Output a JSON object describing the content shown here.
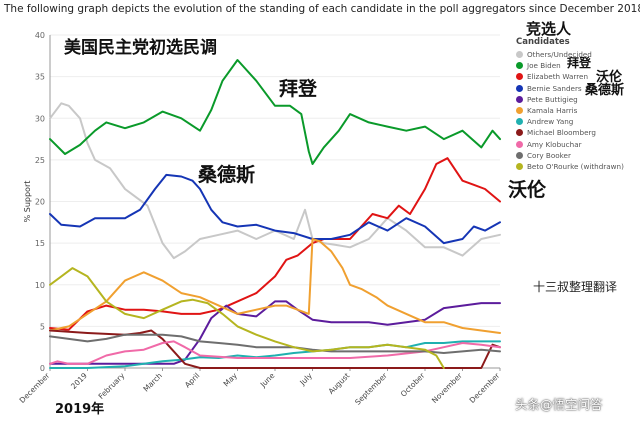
{
  "caption": "The following graph depicts the evolution of the standing of each candidate in the poll aggregators since December 2018.",
  "annotations": {
    "overlay_title": "美国民主党初选民调",
    "biden": "拜登",
    "sanders": "桑德斯",
    "warren": "沃伦",
    "legend_header_cn": "竞选人",
    "legend_biden_cn": "拜登",
    "legend_warren_cn": "沃伦",
    "legend_sanders_cn": "桑德斯",
    "credit": "十三叔整理翻译",
    "year": "2019年",
    "watermark": "头条@悟空问答"
  },
  "chart_data": {
    "type": "line",
    "ylabel": "% Support",
    "ylim": [
      0,
      40
    ],
    "yticks": [
      0,
      5,
      10,
      15,
      20,
      25,
      30,
      35,
      40
    ],
    "xlim": [
      0,
      12
    ],
    "xticks": [
      {
        "label": "December",
        "x": 0
      },
      {
        "label": "2019",
        "x": 1
      },
      {
        "label": "February",
        "x": 2
      },
      {
        "label": "March",
        "x": 3
      },
      {
        "label": "April",
        "x": 4
      },
      {
        "label": "May",
        "x": 5
      },
      {
        "label": "June",
        "x": 6
      },
      {
        "label": "July",
        "x": 7
      },
      {
        "label": "August",
        "x": 8
      },
      {
        "label": "September",
        "x": 9
      },
      {
        "label": "October",
        "x": 10
      },
      {
        "label": "November",
        "x": 11
      },
      {
        "label": "December",
        "x": 12
      }
    ],
    "legend_title": "Candidates",
    "series": [
      {
        "name": "Others/Undecided",
        "color": "#c8c8c8",
        "x": [
          0,
          0.3,
          0.5,
          0.8,
          1.0,
          1.2,
          1.6,
          2.0,
          2.6,
          3.0,
          3.3,
          3.6,
          4.0,
          4.5,
          5.0,
          5.5,
          6.0,
          6.5,
          6.8,
          7.0,
          7.3,
          7.6,
          8.0,
          8.5,
          9.0,
          9.5,
          10.0,
          10.5,
          11.0,
          11.5,
          12.0
        ],
        "y": [
          30,
          31.8,
          31.5,
          30,
          27,
          25,
          24,
          21.5,
          19.5,
          15,
          13.2,
          14,
          15.5,
          16,
          16.5,
          15.5,
          16.5,
          15.5,
          19,
          15.5,
          15,
          14.8,
          14.5,
          15.5,
          18,
          16.5,
          14.5,
          14.5,
          13.5,
          15.5,
          16
        ]
      },
      {
        "name": "Joe Biden",
        "color": "#0a9a2a",
        "x": [
          0,
          0.4,
          0.8,
          1.2,
          1.5,
          2.0,
          2.5,
          3.0,
          3.5,
          4.0,
          4.3,
          4.6,
          5.0,
          5.5,
          6.0,
          6.4,
          6.7,
          6.9,
          7.0,
          7.3,
          7.7,
          8.0,
          8.5,
          9.0,
          9.5,
          10.0,
          10.5,
          11.0,
          11.5,
          11.8,
          12.0
        ],
        "y": [
          27.5,
          25.7,
          26.8,
          28.5,
          29.5,
          28.8,
          29.5,
          30.8,
          30,
          28.5,
          31,
          34.5,
          37,
          34.5,
          31.5,
          31.5,
          30.5,
          26,
          24.5,
          26.5,
          28.5,
          30.5,
          29.5,
          29,
          28.5,
          29,
          27.5,
          28.5,
          26.5,
          28.5,
          27.5
        ]
      },
      {
        "name": "Elizabeth Warren",
        "color": "#e01414",
        "x": [
          0,
          0.5,
          1.0,
          1.5,
          2.0,
          2.5,
          3.0,
          3.5,
          4.0,
          4.5,
          5.0,
          5.5,
          6.0,
          6.3,
          6.6,
          7.0,
          7.3,
          7.6,
          8.0,
          8.3,
          8.6,
          9.0,
          9.3,
          9.6,
          10.0,
          10.3,
          10.6,
          11.0,
          11.3,
          11.6,
          12.0
        ],
        "y": [
          4.8,
          4.6,
          6.8,
          7.5,
          7,
          7,
          6.8,
          6.5,
          6.5,
          7,
          8,
          9,
          11,
          13,
          13.5,
          15,
          15.5,
          15.5,
          15.5,
          17,
          18.5,
          18,
          19.5,
          18.5,
          21.5,
          24.5,
          25.2,
          22.5,
          22,
          21.5,
          20
        ]
      },
      {
        "name": "Bernie Sanders",
        "color": "#1535b5",
        "x": [
          0,
          0.3,
          0.8,
          1.2,
          1.6,
          2.0,
          2.4,
          2.8,
          3.1,
          3.5,
          3.8,
          4.0,
          4.3,
          4.6,
          5.0,
          5.5,
          6.0,
          6.5,
          7.0,
          7.5,
          8.0,
          8.5,
          9.0,
          9.5,
          10.0,
          10.5,
          11.0,
          11.3,
          11.6,
          12.0
        ],
        "y": [
          18.5,
          17.2,
          17,
          18,
          18,
          18,
          19,
          21.5,
          23.2,
          23,
          22.5,
          21.5,
          19,
          17.5,
          17,
          17.2,
          16.5,
          16.2,
          15.5,
          15.5,
          16,
          17.5,
          16.5,
          18,
          17,
          15,
          15.5,
          17,
          16.5,
          17.5
        ]
      },
      {
        "name": "Pete Buttigieg",
        "color": "#5c1c9c",
        "x": [
          0,
          1.0,
          2.0,
          2.8,
          3.3,
          3.6,
          4.0,
          4.3,
          4.7,
          5.0,
          5.5,
          6.0,
          6.3,
          6.6,
          7.0,
          7.5,
          8.0,
          8.5,
          9.0,
          9.5,
          10.0,
          10.5,
          11.0,
          11.5,
          12.0
        ],
        "y": [
          0.5,
          0.5,
          0.5,
          0.5,
          0.5,
          1,
          3.5,
          6,
          7.5,
          6.5,
          6.2,
          8,
          8,
          7,
          5.8,
          5.5,
          5.5,
          5.5,
          5.2,
          5.5,
          5.8,
          7.2,
          7.5,
          7.8,
          7.8
        ]
      },
      {
        "name": "Kamala Harris",
        "color": "#f0a030",
        "x": [
          0,
          0.5,
          1.0,
          1.5,
          2.0,
          2.5,
          3.0,
          3.5,
          4.0,
          4.5,
          5.0,
          5.5,
          6.0,
          6.3,
          6.6,
          6.9,
          7.0,
          7.2,
          7.5,
          7.8,
          8.0,
          8.3,
          8.7,
          9.0,
          9.5,
          10.0,
          10.5,
          11.0,
          11.5,
          12.0
        ],
        "y": [
          4.5,
          5,
          6.5,
          8,
          10.5,
          11.5,
          10.5,
          9,
          8.5,
          7.5,
          6.5,
          7,
          7.5,
          7.5,
          7,
          6.5,
          15.5,
          15.2,
          14,
          12,
          10,
          9.5,
          8.5,
          7.5,
          6.5,
          5.5,
          5.5,
          4.8,
          4.5,
          4.2
        ]
      },
      {
        "name": "Andrew Yang",
        "color": "#20b0b0",
        "x": [
          0,
          1.0,
          2.0,
          2.5,
          3.0,
          3.5,
          4.0,
          4.5,
          5.0,
          5.5,
          6.0,
          6.5,
          7.0,
          7.5,
          8.0,
          8.5,
          9.0,
          9.5,
          10.0,
          10.5,
          11.0,
          11.5,
          12.0
        ],
        "y": [
          0,
          0,
          0.2,
          0.5,
          0.8,
          1,
          1.3,
          1.2,
          1.5,
          1.3,
          1.5,
          1.8,
          2,
          2.2,
          2.5,
          2.5,
          2.8,
          2.5,
          3,
          3,
          3.2,
          3.2,
          3.2
        ]
      },
      {
        "name": "Michael Bloomberg",
        "color": "#8b1a1a",
        "x": [
          0,
          1.0,
          2.0,
          2.4,
          2.7,
          3.0,
          3.3,
          3.6,
          4.0,
          5.0,
          6.0,
          7.0,
          8.0,
          9.0,
          10.0,
          10.5,
          10.9,
          11.2,
          11.5,
          11.8,
          12.0
        ],
        "y": [
          4.5,
          4.2,
          4.0,
          4.2,
          4.5,
          3.5,
          2.0,
          0.5,
          0,
          0,
          0,
          0,
          0,
          0,
          0,
          0,
          0,
          0,
          0,
          2.8,
          2.5
        ]
      },
      {
        "name": "Amy Klobuchar",
        "color": "#f06aa8",
        "x": [
          0,
          0.2,
          0.5,
          1.0,
          1.5,
          2.0,
          2.5,
          3.0,
          3.3,
          3.6,
          4.0,
          5.0,
          6.0,
          7.0,
          8.0,
          9.0,
          10.0,
          10.5,
          11.0,
          11.5,
          12.0
        ],
        "y": [
          0.5,
          0.8,
          0.5,
          0.5,
          1.5,
          2,
          2.2,
          3,
          3.2,
          2.5,
          1.5,
          1.2,
          1.2,
          1.2,
          1.2,
          1.5,
          2.0,
          2.5,
          3.0,
          2.8,
          2.5
        ]
      },
      {
        "name": "Cory Booker",
        "color": "#6e6e6e",
        "x": [
          0,
          0.5,
          1.0,
          1.5,
          2.0,
          2.5,
          3.0,
          3.5,
          4.0,
          4.5,
          5.0,
          5.5,
          6.0,
          6.5,
          7.0,
          7.5,
          8.0,
          8.5,
          9.0,
          9.5,
          10.0,
          10.5,
          11.0,
          11.5,
          12.0
        ],
        "y": [
          3.8,
          3.5,
          3.2,
          3.5,
          4,
          4,
          4,
          3.8,
          3.2,
          3,
          2.8,
          2.5,
          2.5,
          2.5,
          2.2,
          2,
          2,
          2,
          2,
          2,
          2,
          1.8,
          2,
          2.2,
          2
        ]
      },
      {
        "name": "Beto O'Rourke (withdrawn)",
        "color": "#b5b520",
        "x": [
          0,
          0.3,
          0.6,
          1.0,
          1.5,
          2.0,
          2.5,
          3.0,
          3.5,
          3.8,
          4.2,
          4.6,
          5.0,
          5.5,
          6.0,
          6.5,
          7.0,
          7.5,
          8.0,
          8.5,
          9.0,
          9.5,
          10.0,
          10.3,
          10.5
        ],
        "y": [
          10,
          11,
          12,
          11,
          8,
          6.5,
          6,
          7,
          8,
          8.2,
          7.8,
          6.5,
          5,
          4,
          3.2,
          2.5,
          2,
          2.2,
          2.5,
          2.5,
          2.8,
          2.5,
          2.2,
          1.5,
          0
        ]
      }
    ]
  }
}
